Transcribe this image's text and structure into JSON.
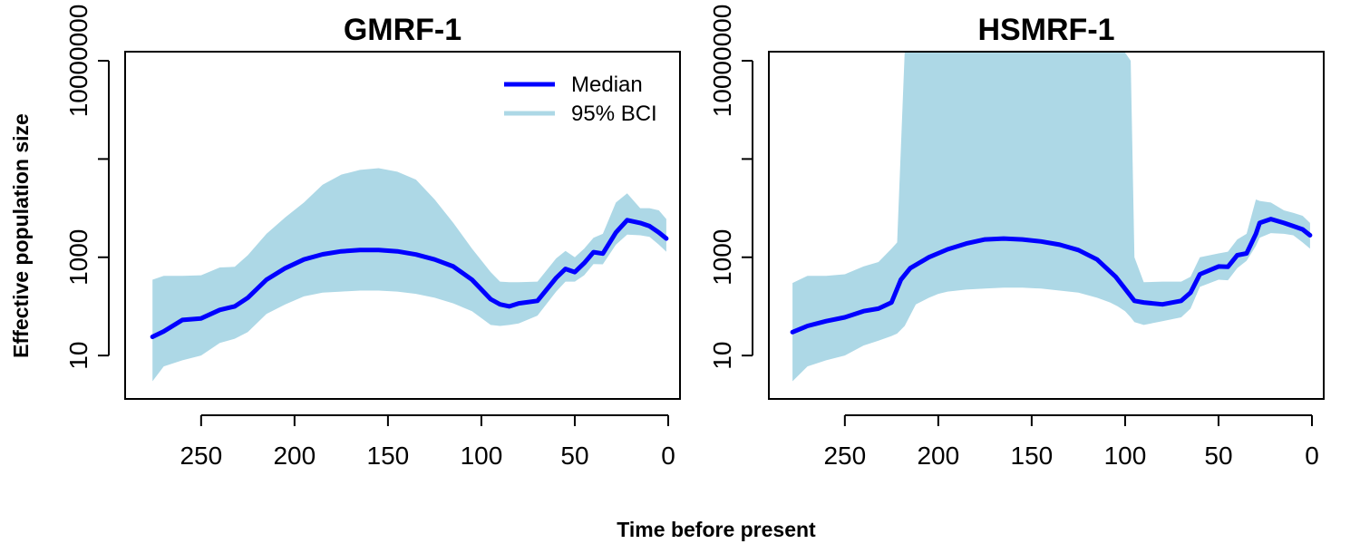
{
  "figure": {
    "xlabel": "Time before present",
    "ylabel": "Effective population size"
  },
  "legend": {
    "items": [
      {
        "label": "Median",
        "color": "#0000FF"
      },
      {
        "label": "95% BCI",
        "color": "#ADD8E6"
      }
    ]
  },
  "colors": {
    "median": "#0000FF",
    "band": "#ADD8E6",
    "axis": "#000000"
  },
  "chart_data": [
    {
      "type": "area",
      "title": "GMRF-1",
      "xlabel": "Time before present",
      "ylabel": "Effective population size",
      "x_reversed": true,
      "y_scale": "log10",
      "xlim": [
        0,
        280
      ],
      "ylim": [
        2,
        10000000
      ],
      "xticks": [
        250,
        200,
        150,
        100,
        50,
        0
      ],
      "yticks": [
        10,
        1000,
        10000000
      ],
      "ytick_labels": [
        "10",
        "1000",
        "10000000"
      ],
      "legend_position": "top-right",
      "series": [
        {
          "name": "Median",
          "x": [
            276,
            270,
            260,
            250,
            240,
            232,
            225,
            215,
            205,
            195,
            185,
            175,
            165,
            155,
            145,
            135,
            125,
            115,
            105,
            95,
            90,
            85,
            80,
            70,
            60,
            55,
            50,
            45,
            40,
            35,
            28,
            22,
            15,
            10,
            5,
            1
          ],
          "y": [
            24,
            31,
            53,
            57,
            85,
            100,
            150,
            350,
            600,
            900,
            1150,
            1320,
            1400,
            1400,
            1320,
            1140,
            900,
            650,
            350,
            140,
            110,
            100,
            115,
            130,
            380,
            580,
            500,
            760,
            1270,
            1190,
            3200,
            5700,
            5000,
            4300,
            3200,
            2400
          ]
        },
        {
          "name": "95% BCI",
          "x": [
            276,
            270,
            260,
            250,
            240,
            232,
            225,
            215,
            205,
            195,
            185,
            175,
            165,
            155,
            145,
            135,
            125,
            115,
            105,
            95,
            90,
            85,
            80,
            70,
            60,
            55,
            50,
            45,
            40,
            35,
            28,
            22,
            15,
            10,
            5,
            1
          ],
          "upper": [
            350,
            420,
            420,
            430,
            620,
            640,
            1100,
            3000,
            6500,
            13000,
            30000,
            48000,
            60000,
            65000,
            55000,
            38000,
            15000,
            5000,
            1500,
            500,
            320,
            310,
            310,
            320,
            950,
            1350,
            1000,
            1500,
            2500,
            3000,
            13000,
            20000,
            10000,
            10000,
            9000,
            6000
          ],
          "lower": [
            3,
            6,
            8,
            10,
            18,
            22,
            30,
            70,
            110,
            160,
            190,
            200,
            210,
            210,
            200,
            180,
            150,
            115,
            80,
            42,
            40,
            42,
            45,
            65,
            200,
            320,
            320,
            430,
            730,
            720,
            1800,
            2900,
            2800,
            2600,
            1800,
            1300
          ]
        }
      ]
    },
    {
      "type": "area",
      "title": "HSMRF-1",
      "xlabel": "Time before present",
      "ylabel": "Effective population size",
      "x_reversed": true,
      "y_scale": "log10",
      "xlim": [
        0,
        280
      ],
      "ylim": [
        2,
        10000000
      ],
      "xticks": [
        250,
        200,
        150,
        100,
        50,
        0
      ],
      "yticks": [
        10,
        1000,
        10000000
      ],
      "ytick_labels": [
        "10",
        "1000",
        "10000000"
      ],
      "series": [
        {
          "name": "Median",
          "x": [
            278,
            270,
            260,
            250,
            240,
            232,
            225,
            220,
            215,
            205,
            195,
            185,
            175,
            165,
            155,
            145,
            135,
            125,
            115,
            105,
            95,
            90,
            80,
            70,
            65,
            60,
            50,
            45,
            40,
            35,
            30,
            28,
            22,
            15,
            10,
            5,
            1
          ],
          "y": [
            30,
            40,
            50,
            60,
            80,
            90,
            120,
            350,
            600,
            1000,
            1450,
            1900,
            2300,
            2400,
            2300,
            2100,
            1800,
            1400,
            900,
            400,
            130,
            120,
            110,
            130,
            190,
            450,
            650,
            640,
            1100,
            1200,
            3000,
            5000,
            6000,
            5000,
            4300,
            3700,
            2800
          ]
        },
        {
          "name": "95% BCI",
          "x": [
            278,
            270,
            260,
            250,
            240,
            232,
            225,
            222,
            218,
            212,
            205,
            200,
            195,
            190,
            185,
            175,
            165,
            155,
            145,
            140,
            135,
            125,
            115,
            108,
            104,
            100,
            97,
            95,
            90,
            80,
            70,
            65,
            60,
            50,
            45,
            40,
            35,
            30,
            28,
            22,
            15,
            10,
            5,
            1
          ],
          "upper": [
            300,
            420,
            420,
            450,
            650,
            800,
            1500,
            2000,
            100000000,
            1000000000,
            2000000000,
            2500000000,
            6000000000,
            9000000000,
            11000000000,
            18000000000,
            20000000000,
            30000000000,
            40000000000,
            90000000000,
            80000000000,
            70000000000,
            60000000000,
            60000000000,
            4000000000,
            1000000000,
            10000000,
            1000,
            310,
            320,
            320,
            400,
            1000,
            1200,
            1300,
            2300,
            3000,
            15000,
            14000,
            13000,
            9000,
            8000,
            7000,
            5000
          ],
          "lower": [
            3,
            6,
            8,
            10,
            16,
            20,
            25,
            28,
            40,
            110,
            150,
            180,
            200,
            210,
            220,
            230,
            240,
            240,
            230,
            220,
            210,
            190,
            150,
            120,
            100,
            80,
            60,
            48,
            42,
            50,
            60,
            90,
            250,
            350,
            340,
            600,
            850,
            1700,
            2500,
            3100,
            3000,
            2800,
            2000,
            1500
          ]
        }
      ]
    }
  ]
}
